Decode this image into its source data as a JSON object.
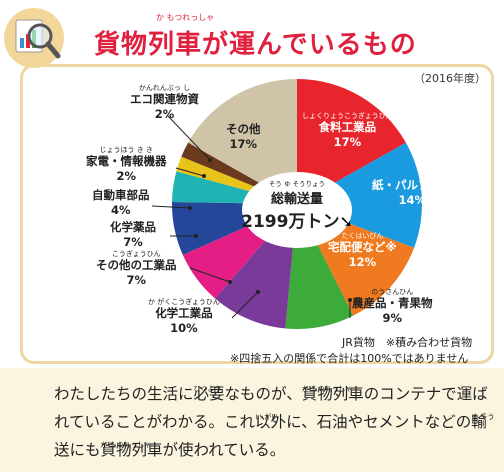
{
  "header": {
    "title": "貨物列車が運んでいるもの",
    "title_ruby": "か もつれっしゃ",
    "year": "（2016年度）"
  },
  "colors": {
    "title": "#e0203f",
    "card_border": "#ecd7a3",
    "bottom_bg": "#fbf4df"
  },
  "chart_data": {
    "type": "pie",
    "title": "",
    "center_label": "総輸送量",
    "center_ruby": "そう ゆ そうりょう",
    "center_value": "2199万トン",
    "unit": "%",
    "slices": [
      {
        "label": "食料工業品",
        "ruby": "しょくりょうこうぎょうひん",
        "value": 17,
        "display": "17%",
        "color": "#e8252c"
      },
      {
        "label": "紙・パルプなど",
        "ruby": "",
        "value": 14,
        "display": "14%",
        "color": "#1a9be0"
      },
      {
        "label": "宅配便など※",
        "ruby": "たくはいびん",
        "value": 12,
        "display": "12%",
        "color": "#f07a20"
      },
      {
        "label": "農産品・青果物",
        "ruby": "のうさんひん",
        "value": 9,
        "display": "9%",
        "color": "#3cab3a"
      },
      {
        "label": "化学工業品",
        "ruby": "か がくこうぎょうひん",
        "value": 10,
        "display": "10%",
        "color": "#7a3a9a"
      },
      {
        "label": "その他の工業品",
        "ruby": "こうぎょうひん",
        "value": 7,
        "display": "7%",
        "color": "#e51e86"
      },
      {
        "label": "化学薬品",
        "ruby": "",
        "value": 7,
        "display": "7%",
        "color": "#24479a"
      },
      {
        "label": "自動車部品",
        "ruby": "",
        "value": 4,
        "display": "4%",
        "color": "#1fb3b3"
      },
      {
        "label": "家電・情報機器",
        "ruby": "じょうほう き き",
        "value": 2,
        "display": "2%",
        "color": "#e8c41a"
      },
      {
        "label": "エコ関連物資",
        "ruby": "かんれんぶっ し",
        "value": 2,
        "display": "2%",
        "color": "#6b3a1e"
      },
      {
        "label": "その他",
        "ruby": "",
        "value": 17,
        "display": "17%",
        "color": "#cfc3a8"
      }
    ]
  },
  "notes": {
    "source": "JR貨物　※積み合わせ貨物",
    "rounding": "※四捨五入の関係で合計は100%ではありません"
  },
  "paragraph": {
    "p1": "わたしたちの生活に",
    "w1": "必要",
    "w1r": "ひつよう",
    "p2": "なものが、",
    "w2": "貨物列車",
    "w2r": "か もつれっしゃ",
    "p3": "のコンテナで運ばれていることがわかる。これ",
    "w3": "以外",
    "w3r": "い がい",
    "p4": "に、石油やセメントなどの",
    "w4": "輸送",
    "w4r": "ゆ そう",
    "p5": "にも",
    "w5": "貨物列車",
    "w5r": "か もつれっしゃ",
    "p6": "が使われている。"
  }
}
